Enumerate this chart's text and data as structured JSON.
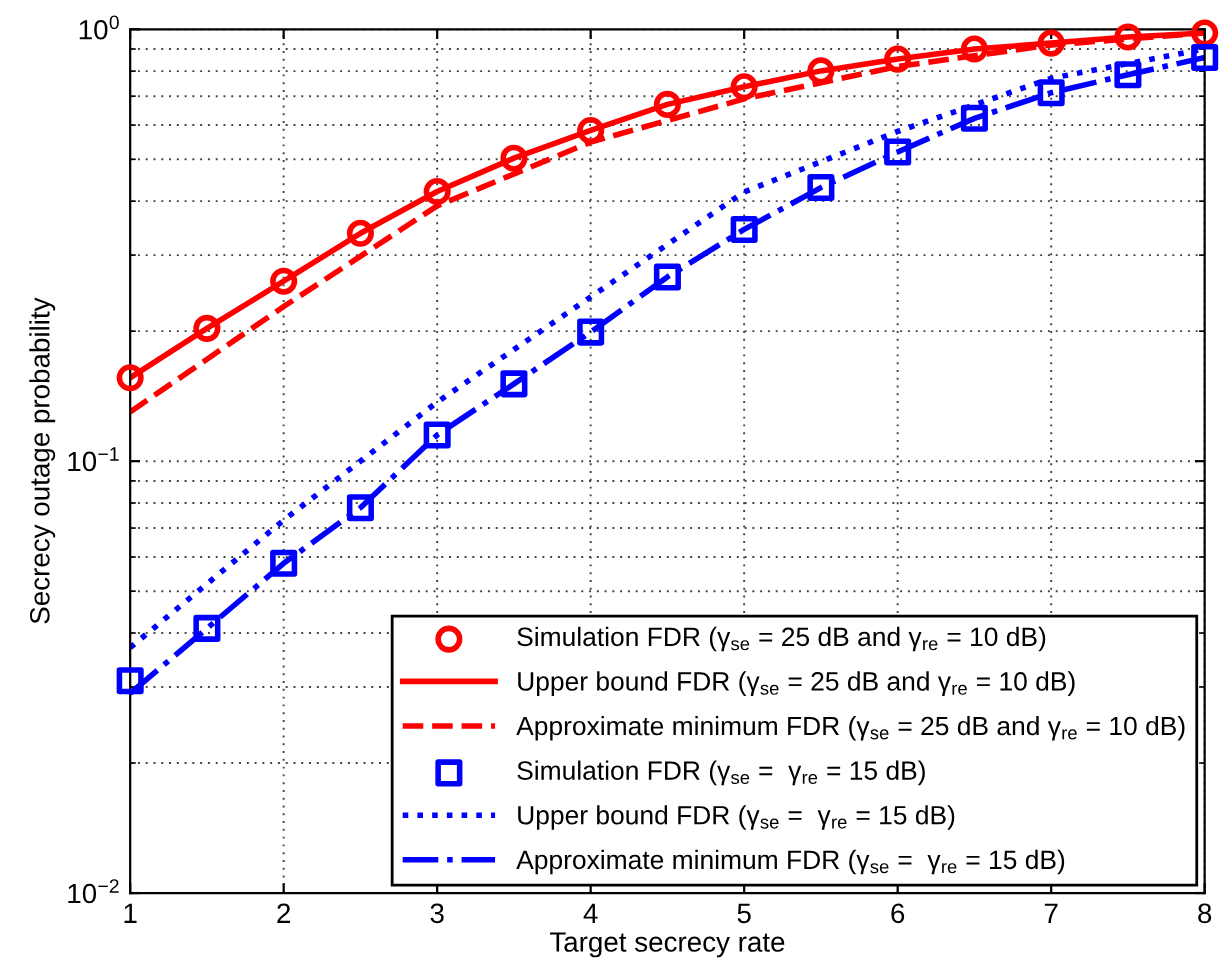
{
  "chart_data": {
    "type": "line",
    "xlabel": "Target secrecy rate",
    "ylabel": "Secrecy outage probability",
    "xlim": [
      1,
      8
    ],
    "xticks": [
      1,
      2,
      3,
      4,
      5,
      6,
      7,
      8
    ],
    "ylim": [
      0.01,
      1
    ],
    "yticks": [
      {
        "value": 0.01,
        "label": "10$^{−2}$"
      },
      {
        "value": 0.1,
        "label": "10$^{−1}$"
      },
      {
        "value": 1,
        "label": "10$^{0}$"
      }
    ],
    "log": "y",
    "grid": true,
    "legend": "bottom right",
    "series": [
      {
        "name": "Simulation FDR (γ$_{se}$ = 25 dB and γ$_{re}$ = 10 dB)",
        "type": "scatter",
        "marker": "circle",
        "color": "#ff0000",
        "x": [
          1,
          1.5,
          2,
          2.5,
          3,
          3.5,
          4,
          4.5,
          5,
          5.5,
          6,
          6.5,
          7,
          7.5,
          8
        ],
        "values": [
          0.156,
          0.203,
          0.261,
          0.337,
          0.421,
          0.503,
          0.583,
          0.67,
          0.736,
          0.801,
          0.853,
          0.9,
          0.929,
          0.96,
          0.98
        ]
      },
      {
        "name": "Upper bound FDR (γ$_{se}$ = 25 dB and γ$_{re}$ = 10 dB)",
        "line_style": "solid",
        "color": "#ff0000",
        "x": [
          1,
          1.5,
          2,
          2.5,
          3,
          3.5,
          4,
          4.5,
          5,
          5.5,
          6,
          6.5,
          7,
          7.5,
          8
        ],
        "values": [
          0.156,
          0.203,
          0.261,
          0.337,
          0.421,
          0.503,
          0.583,
          0.67,
          0.736,
          0.801,
          0.853,
          0.9,
          0.929,
          0.96,
          0.98
        ]
      },
      {
        "name": "Approximate minimum FDR (γ$_{se}$ = 25 dB and γ$_{re}$ = 10 dB)",
        "line_style": "dashed",
        "color": "#ff0000",
        "x": [
          1,
          2,
          3,
          4,
          5,
          6,
          7,
          8
        ],
        "values": [
          0.13,
          0.228,
          0.39,
          0.548,
          0.69,
          0.82,
          0.92,
          0.98
        ]
      },
      {
        "name": "Simulation FDR (γ$_{se}$ =  γ$_{re}$ = 15 dB)",
        "type": "scatter",
        "marker": "square",
        "color": "#0000ff",
        "x": [
          1,
          1.5,
          2,
          2.5,
          3,
          3.5,
          4,
          4.5,
          5,
          5.5,
          6,
          6.5,
          7,
          7.5,
          8
        ],
        "values": [
          0.031,
          0.041,
          0.058,
          0.078,
          0.115,
          0.151,
          0.199,
          0.267,
          0.344,
          0.43,
          0.52,
          0.622,
          0.713,
          0.785,
          0.86
        ]
      },
      {
        "name": "Upper bound FDR (γ$_{se}$ =  γ$_{re}$ = 15 dB)",
        "line_style": "dotted",
        "color": "#0000ff",
        "x": [
          1,
          2,
          3,
          4,
          5,
          6,
          7,
          8
        ],
        "values": [
          0.037,
          0.073,
          0.137,
          0.24,
          0.42,
          0.58,
          0.77,
          0.9
        ]
      },
      {
        "name": "Approximate minimum FDR (γ$_{se}$ =  γ$_{re}$ = 15 dB)",
        "line_style": "dashdot",
        "color": "#0000ff",
        "x": [
          1,
          1.5,
          2,
          2.5,
          3,
          3.5,
          4,
          4.5,
          5,
          5.5,
          6,
          6.5,
          7,
          7.5,
          8
        ],
        "values": [
          0.029,
          0.041,
          0.058,
          0.078,
          0.115,
          0.151,
          0.199,
          0.267,
          0.344,
          0.43,
          0.52,
          0.622,
          0.713,
          0.785,
          0.86
        ]
      }
    ]
  }
}
